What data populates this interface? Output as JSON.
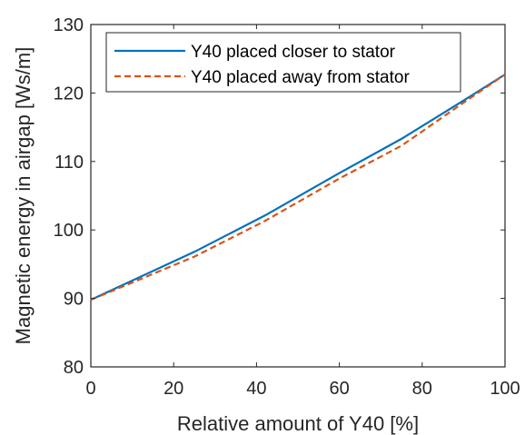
{
  "chart_data": {
    "type": "line",
    "title": "",
    "xlabel": "Relative amount of Y40 [%]",
    "ylabel": "Magnetic energy in airgap [Ws/m]",
    "xlim": [
      0,
      100
    ],
    "ylim": [
      80,
      130
    ],
    "xticks": [
      0,
      20,
      40,
      60,
      80,
      100
    ],
    "yticks": [
      80,
      90,
      100,
      110,
      120,
      130
    ],
    "grid": false,
    "legend_position": "top-left",
    "series": [
      {
        "name": "Y40 placed closer to stator",
        "color": "#0072bd",
        "style": "solid",
        "x": [
          0,
          25,
          42,
          60,
          75,
          90,
          100
        ],
        "y": [
          89.8,
          96.8,
          102.1,
          108.3,
          113.3,
          118.9,
          122.7
        ]
      },
      {
        "name": "Y40 placed away from stator",
        "color": "#d95319",
        "style": "dashed",
        "x": [
          0,
          25,
          42,
          60,
          75,
          90,
          100
        ],
        "y": [
          89.8,
          96.1,
          101.3,
          107.5,
          112.3,
          118.6,
          122.7
        ]
      }
    ]
  }
}
